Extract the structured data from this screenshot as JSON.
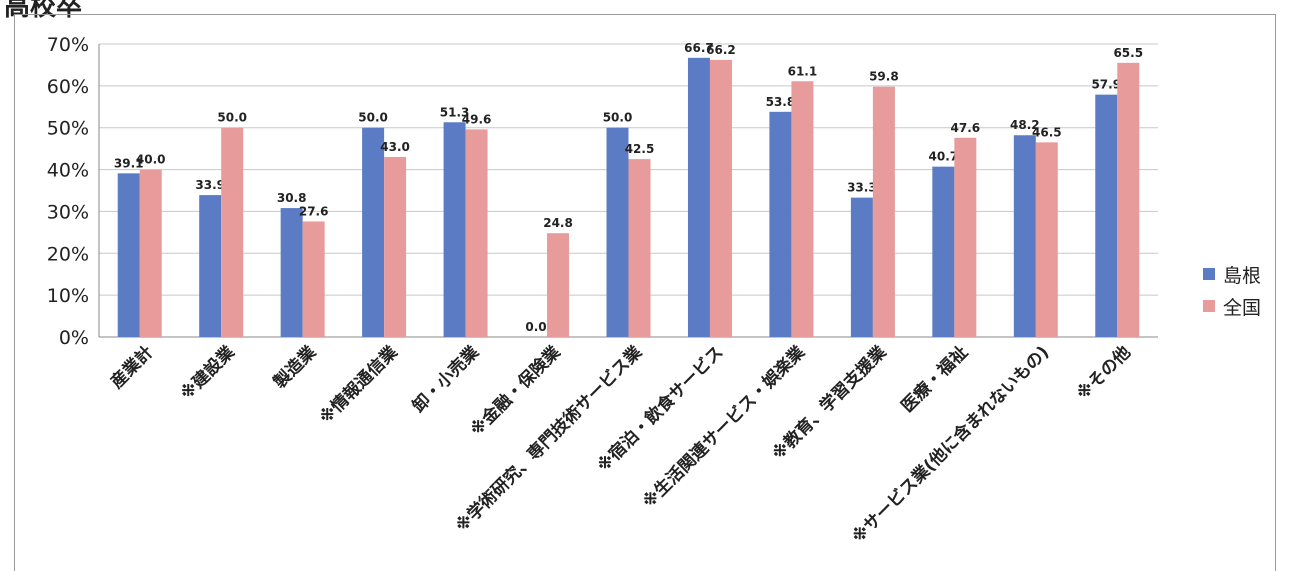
{
  "header": {
    "cutoff_text": "高校卒"
  },
  "colors": {
    "shimane": "#5b7bc4",
    "national": "#e89b9b",
    "grid": "#c8c8c8"
  },
  "chart_data": {
    "type": "bar",
    "ylim": [
      0,
      70
    ],
    "y_tick_step": 10,
    "y_ticks": [
      "0%",
      "10%",
      "20%",
      "30%",
      "40%",
      "50%",
      "60%",
      "70%"
    ],
    "legend_position": "right",
    "categories": [
      "産業計",
      "※建設業",
      "製造業",
      "※情報通信業",
      "卸・小売業",
      "※金融・保険業",
      "※学術研究、専門技術サービス業",
      "※宿泊・飲食サービス",
      "※生活関連サービス・娯楽業",
      "※教育、学習支援業",
      "医療・福祉",
      "※サービス業(他に含まれないもの)",
      "※その他"
    ],
    "series": [
      {
        "name": "島根",
        "values": [
          39.1,
          33.9,
          30.8,
          50.0,
          51.3,
          0.0,
          50.0,
          66.7,
          53.8,
          33.3,
          40.7,
          48.2,
          57.9
        ]
      },
      {
        "name": "全国",
        "values": [
          40.0,
          50.0,
          27.6,
          43.0,
          49.6,
          24.8,
          42.5,
          66.2,
          61.1,
          59.8,
          47.6,
          46.5,
          65.5
        ]
      }
    ],
    "data_labels": [
      [
        "39.1",
        "33.9",
        "30.8",
        "50.0",
        "51.3",
        "0.0",
        "50.0",
        "66.7",
        "53.8",
        "33.3",
        "40.7",
        "48.2",
        "57.9"
      ],
      [
        "40.0",
        "50.0",
        "27.6",
        "43.0",
        "49.6",
        "24.8",
        "42.5",
        "66.2",
        "61.1",
        "59.8",
        "47.6",
        "46.5",
        "65.5"
      ]
    ]
  }
}
